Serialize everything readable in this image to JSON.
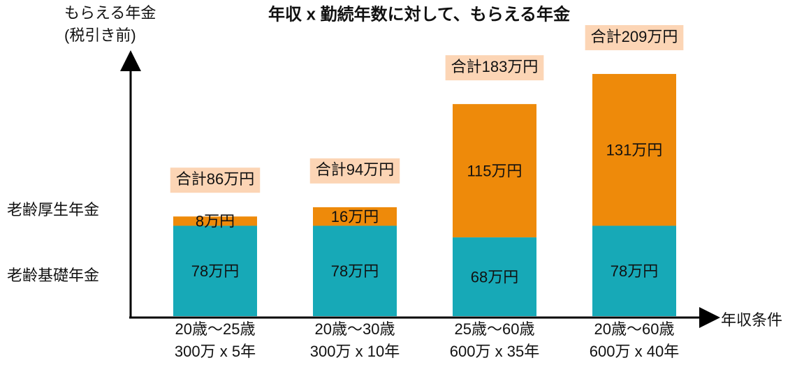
{
  "chart_data": {
    "type": "stacked_bar",
    "title": "年収 x 勤続年数に対して、もらえる年金",
    "ylabel": [
      "もらえる年金",
      "(税引き前)"
    ],
    "xlabel": "年収条件",
    "categories": [
      [
        "20歳〜25歳",
        "300万 x 5年"
      ],
      [
        "20歳〜30歳",
        "300万 x 10年"
      ],
      [
        "25歳〜60歳",
        "600万 x 35年"
      ],
      [
        "20歳〜60歳",
        "600万 x 40年"
      ]
    ],
    "series": [
      {
        "name": "老齢基礎年金",
        "color": "#17a9b7",
        "values": [
          78,
          78,
          68,
          78
        ],
        "value_labels": [
          "78万円",
          "78万円",
          "68万円",
          "78万円"
        ]
      },
      {
        "name": "老齢厚生年金",
        "color": "#ee8a0a",
        "values": [
          8,
          16,
          115,
          131
        ],
        "value_labels": [
          "8万円",
          "16万円",
          "115万円",
          "131万円"
        ]
      }
    ],
    "totals": {
      "values": [
        86,
        94,
        183,
        209
      ],
      "value_labels": [
        "合計86万円",
        "合計94万円",
        "合計183万円",
        "合計209万円"
      ],
      "color": "#fcd5b5"
    },
    "ylim": [
      0,
      215
    ]
  }
}
